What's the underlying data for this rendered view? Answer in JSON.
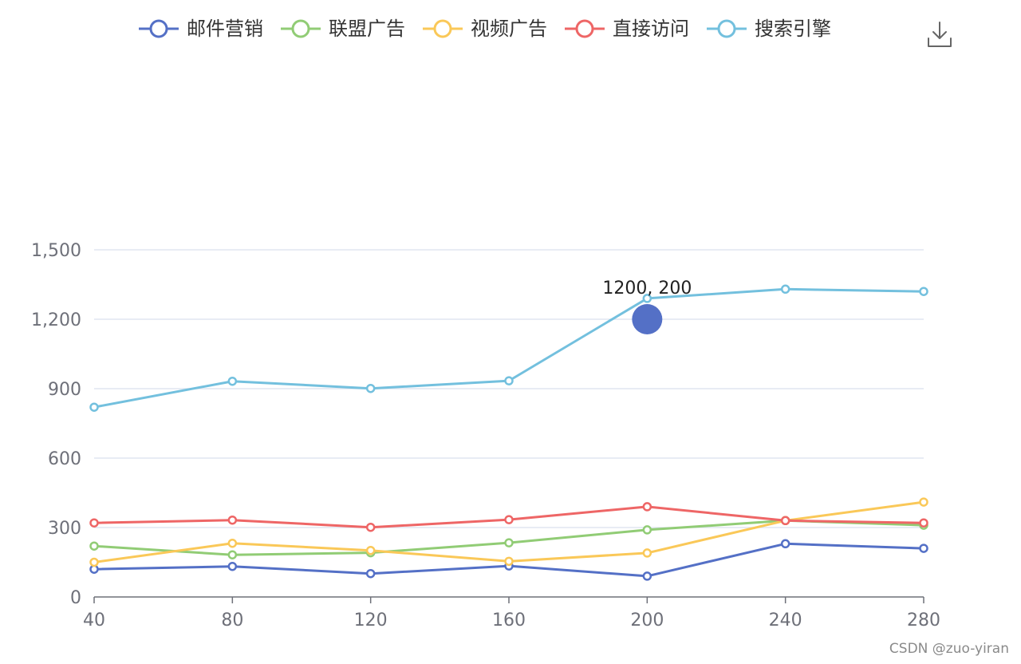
{
  "chart_data": {
    "type": "line",
    "x": [
      40,
      80,
      120,
      160,
      200,
      240,
      280
    ],
    "xlim": [
      40,
      280
    ],
    "ylim": [
      0,
      1500
    ],
    "yticks": [
      "0",
      "300",
      "600",
      "900",
      "1,200",
      "1,500"
    ],
    "xticks": [
      "40",
      "80",
      "120",
      "160",
      "200",
      "240",
      "280"
    ],
    "grid": true,
    "legend_position": "top",
    "series": [
      {
        "name": "邮件营销",
        "color": "#5470c6",
        "values": [
          120,
          132,
          101,
          134,
          90,
          230,
          210
        ]
      },
      {
        "name": "联盟广告",
        "color": "#91cc75",
        "values": [
          220,
          182,
          191,
          234,
          290,
          330,
          310
        ]
      },
      {
        "name": "视频广告",
        "color": "#fac858",
        "values": [
          150,
          232,
          201,
          154,
          190,
          330,
          410
        ]
      },
      {
        "name": "直接访问",
        "color": "#ee6666",
        "values": [
          320,
          332,
          301,
          334,
          390,
          330,
          320
        ]
      },
      {
        "name": "搜索引擎",
        "color": "#73c0de",
        "values": [
          820,
          932,
          901,
          934,
          1290,
          1330,
          1320
        ]
      }
    ],
    "annotations": [
      {
        "text": "1200, 200",
        "x": 200,
        "y": 1200,
        "marker_color": "#5470c6"
      }
    ]
  },
  "toolbox": {
    "download_icon": "download-icon"
  },
  "watermark": {
    "text": "CSDN @zuo-yiran"
  }
}
